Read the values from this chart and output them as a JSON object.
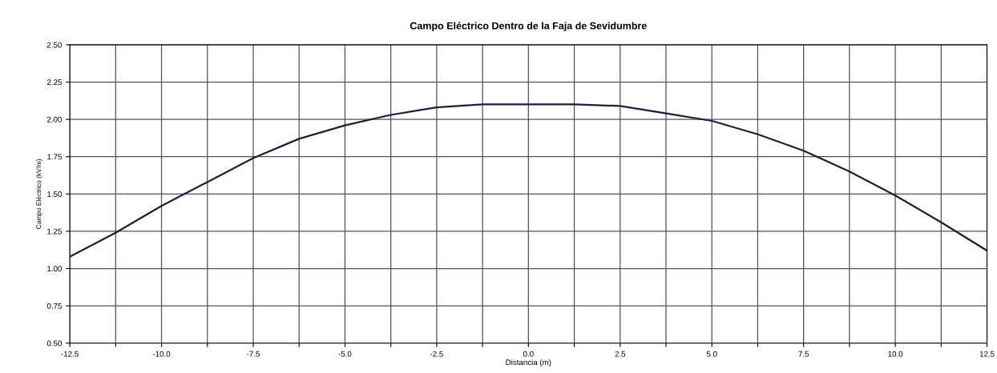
{
  "chart_data": {
    "type": "line",
    "title": "Campo Eléctrico Dentro de la Faja de Sevidumbre",
    "xlabel": "Distancia (m)",
    "ylabel": "Campo Eléctrico (kV/m)",
    "x": [
      -12.5,
      -11.25,
      -10,
      -8.75,
      -7.5,
      -6.25,
      -5,
      -3.75,
      -2.5,
      -1.25,
      0,
      1.25,
      2.5,
      3.75,
      5,
      6.25,
      7.5,
      8.75,
      10,
      11.25,
      12.5
    ],
    "series": [
      {
        "color": "#1f1f3a",
        "values": [
          1.08,
          1.24,
          1.42,
          1.58,
          1.74,
          1.87,
          1.96,
          2.03,
          2.08,
          2.1,
          2.1,
          2.1,
          2.09,
          2.04,
          1.99,
          1.9,
          1.79,
          1.65,
          1.49,
          1.31,
          1.12
        ]
      }
    ],
    "xlim": [
      -12.5,
      12.5
    ],
    "ylim": [
      0.5,
      2.5
    ],
    "xticks": [
      {
        "value": -12.5,
        "label": "-12.5"
      },
      {
        "value": -11.25,
        "label": null
      },
      {
        "value": -10,
        "label": "-10.0"
      },
      {
        "value": -8.75,
        "label": null
      },
      {
        "value": -7.5,
        "label": "-7.5"
      },
      {
        "value": -6.25,
        "label": null
      },
      {
        "value": -5,
        "label": "-5.0"
      },
      {
        "value": -3.75,
        "label": null
      },
      {
        "value": -2.5,
        "label": "-2.5"
      },
      {
        "value": -1.25,
        "label": null
      },
      {
        "value": 0,
        "label": "0.0"
      },
      {
        "value": 1.25,
        "label": null
      },
      {
        "value": 2.5,
        "label": "2.5"
      },
      {
        "value": 3.75,
        "label": null
      },
      {
        "value": 5,
        "label": "5.0"
      },
      {
        "value": 6.25,
        "label": null
      },
      {
        "value": 7.5,
        "label": "7.5"
      },
      {
        "value": 8.75,
        "label": null
      },
      {
        "value": 10,
        "label": "10.0"
      },
      {
        "value": 11.25,
        "label": null
      },
      {
        "value": 12.5,
        "label": "12.5"
      }
    ],
    "yticks": [
      {
        "value": 0.5,
        "label": "0.50"
      },
      {
        "value": 0.75,
        "label": "0.75"
      },
      {
        "value": 1,
        "label": "1.00"
      },
      {
        "value": 1.25,
        "label": "1.25"
      },
      {
        "value": 1.5,
        "label": "1.50"
      },
      {
        "value": 1.75,
        "label": "1.75"
      },
      {
        "value": 2,
        "label": "2.00"
      },
      {
        "value": 2.25,
        "label": "2.25"
      },
      {
        "value": 2.5,
        "label": "2.50"
      }
    ],
    "grid": true,
    "marker": "none",
    "line_style": "solid",
    "legend": false
  }
}
